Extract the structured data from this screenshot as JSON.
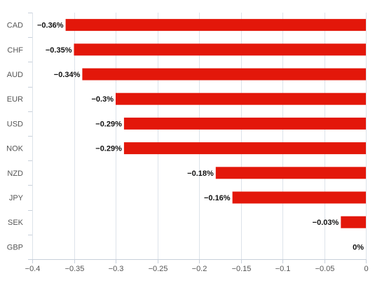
{
  "chart_data": {
    "type": "bar",
    "orientation": "horizontal",
    "categories": [
      "CAD",
      "CHF",
      "AUD",
      "EUR",
      "USD",
      "NOK",
      "NZD",
      "JPY",
      "SEK",
      "GBP"
    ],
    "values": [
      -0.36,
      -0.35,
      -0.34,
      -0.3,
      -0.29,
      -0.29,
      -0.18,
      -0.16,
      -0.03,
      0
    ],
    "data_labels": [
      "−0.36%",
      "−0.35%",
      "−0.34%",
      "−0.3%",
      "−0.29%",
      "−0.29%",
      "−0.18%",
      "−0.16%",
      "−0.03%",
      "0%"
    ],
    "x_ticks": [
      -0.4,
      -0.35,
      -0.3,
      -0.25,
      -0.2,
      -0.15,
      -0.1,
      -0.05,
      0
    ],
    "x_tick_labels": [
      "−0.4",
      "−0.35",
      "−0.3",
      "−0.25",
      "−0.2",
      "−0.15",
      "−0.1",
      "−0.05",
      "0"
    ],
    "xlim": [
      -0.4,
      0
    ],
    "title": "",
    "xlabel": "",
    "ylabel": "",
    "grid": true,
    "legend": "none",
    "bar_color": "#e3170a"
  }
}
